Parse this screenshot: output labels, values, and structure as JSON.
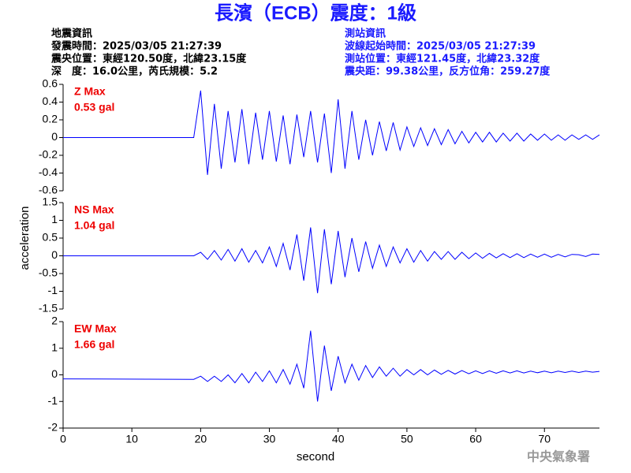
{
  "chart_data": {
    "type": "line",
    "title": "長濱（ECB）震度：1級",
    "info": {
      "left": [
        "地震資訊",
        "發震時間：2025/03/05 21:27:39",
        "震央位置：東經120.50度，北緯23.15度",
        "深　度：16.0公里，芮氏規模：5.2"
      ],
      "right": [
        "測站資訊",
        "波線起始時間：2025/03/05 21:27:39",
        "測站位置：東經121.45度，北緯23.32度",
        "震央距：99.38公里，反方位角：259.27度"
      ]
    },
    "xlabel": "second",
    "ylabel": "acceleration",
    "source": "中央氣象署",
    "xlim": [
      0,
      78
    ],
    "xticks": [
      0,
      10,
      20,
      30,
      40,
      50,
      60,
      70
    ],
    "x": [
      0,
      19,
      20,
      21,
      22,
      23,
      24,
      25,
      26,
      27,
      28,
      29,
      30,
      31,
      32,
      33,
      34,
      35,
      36,
      37,
      38,
      39,
      40,
      41,
      42,
      43,
      44,
      45,
      46,
      47,
      48,
      49,
      50,
      51,
      52,
      53,
      54,
      55,
      56,
      57,
      58,
      59,
      60,
      61,
      62,
      63,
      64,
      65,
      66,
      67,
      68,
      69,
      70,
      71,
      72,
      73,
      74,
      75,
      76,
      77,
      78
    ],
    "panels": [
      {
        "annotation": "Z Max",
        "max_label": "0.53 gal",
        "color": "#0000ff",
        "ylim": [
          -0.6,
          0.6
        ],
        "yticks": [
          -0.6,
          -0.4,
          -0.2,
          0,
          0.2,
          0.4,
          0.6
        ],
        "values": [
          0,
          0,
          0.53,
          -0.42,
          0.38,
          -0.35,
          0.3,
          -0.28,
          0.32,
          -0.3,
          0.28,
          -0.25,
          0.3,
          -0.27,
          0.25,
          -0.3,
          0.26,
          -0.22,
          0.3,
          -0.28,
          0.27,
          -0.4,
          0.43,
          -0.35,
          0.3,
          -0.25,
          0.2,
          -0.2,
          0.18,
          -0.15,
          0.17,
          -0.14,
          0.12,
          -0.1,
          0.11,
          -0.09,
          0.1,
          -0.08,
          0.09,
          -0.07,
          0.07,
          -0.06,
          0.06,
          -0.05,
          0.06,
          -0.05,
          0.05,
          -0.04,
          0.05,
          -0.04,
          0.04,
          -0.03,
          0.04,
          -0.03,
          0.03,
          -0.03,
          0.03,
          -0.02,
          0.03,
          -0.02,
          0.03
        ]
      },
      {
        "annotation": "NS Max",
        "max_label": "1.04 gal",
        "color": "#0000ff",
        "ylim": [
          -1.5,
          1.5
        ],
        "yticks": [
          -1.5,
          -1,
          -0.5,
          0,
          0.5,
          1,
          1.5
        ],
        "values": [
          0,
          0,
          0.1,
          -0.1,
          0.15,
          -0.12,
          0.18,
          -0.15,
          0.2,
          -0.18,
          0.15,
          -0.2,
          0.25,
          -0.3,
          0.35,
          -0.4,
          0.6,
          -0.7,
          0.8,
          -1.05,
          0.75,
          -0.8,
          0.7,
          -0.6,
          0.5,
          -0.45,
          0.4,
          -0.35,
          0.3,
          -0.3,
          0.25,
          -0.2,
          0.2,
          -0.18,
          0.15,
          -0.15,
          0.12,
          -0.1,
          0.12,
          -0.1,
          0.1,
          -0.08,
          0.08,
          -0.07,
          0.07,
          -0.06,
          0.06,
          -0.05,
          0.06,
          -0.05,
          0.05,
          -0.04,
          0.05,
          -0.04,
          0.04,
          -0.03,
          0.04,
          0.03,
          -0.02,
          0.05,
          0.04
        ]
      },
      {
        "annotation": "EW Max",
        "max_label": "1.66 gal",
        "color": "#0000ff",
        "ylim": [
          -2,
          2
        ],
        "yticks": [
          -2,
          -1,
          0,
          1,
          2
        ],
        "values": [
          -0.15,
          -0.17,
          -0.05,
          -0.25,
          -0.05,
          -0.25,
          0.0,
          -0.3,
          0.05,
          -0.3,
          0.1,
          -0.25,
          0.15,
          -0.3,
          0.2,
          -0.35,
          0.4,
          -0.5,
          1.66,
          -1.0,
          1.1,
          -0.6,
          0.7,
          -0.3,
          0.4,
          -0.2,
          0.35,
          -0.1,
          0.3,
          -0.05,
          0.25,
          -0.05,
          0.2,
          0.0,
          0.2,
          0.0,
          0.18,
          0.02,
          0.17,
          0.03,
          0.16,
          0.04,
          0.15,
          0.05,
          0.15,
          0.06,
          0.15,
          0.07,
          0.15,
          0.07,
          0.14,
          0.08,
          0.14,
          0.08,
          0.14,
          0.09,
          0.14,
          0.09,
          0.14,
          0.1,
          0.13
        ]
      }
    ]
  }
}
